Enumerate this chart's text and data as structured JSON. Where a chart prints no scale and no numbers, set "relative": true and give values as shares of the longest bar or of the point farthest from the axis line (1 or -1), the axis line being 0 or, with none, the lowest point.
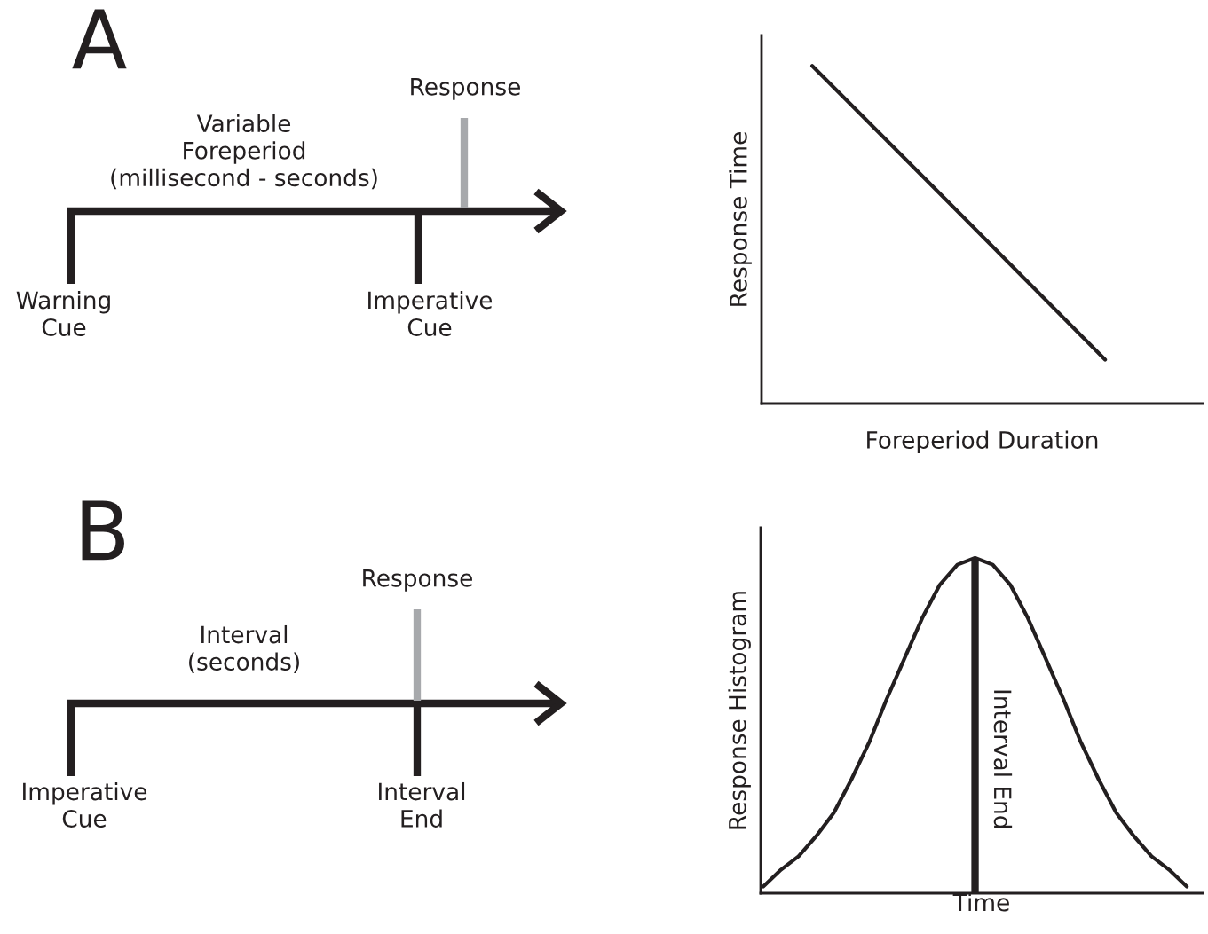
{
  "chart_data": [
    {
      "type": "other",
      "title": "A",
      "annotations": [
        "Response",
        "Variable\nForeperiod\n(millisecond - seconds)",
        "Warning\nCue",
        "Imperative\nCue"
      ]
    },
    {
      "type": "line",
      "relative": true,
      "categories": [
        null,
        null,
        null
      ],
      "xlabel": "Foreperiod Duration",
      "ylabel": "Response Time",
      "tick_labels": false,
      "series": [
        {
          "color": "#231f20",
          "values": [
            1,
            0.566,
            0.13
          ]
        }
      ]
    },
    {
      "type": "other",
      "title": "B",
      "annotations": [
        "Response",
        "Interval\n(seconds)",
        "Imperative\nCue",
        "Interval\nEnd"
      ]
    },
    {
      "type": "line",
      "relative": true,
      "categories": [
        null,
        null,
        null,
        null,
        null,
        null,
        null,
        null,
        null,
        null,
        null,
        null,
        null,
        null,
        null,
        null,
        null,
        null,
        null,
        null,
        null,
        null,
        null,
        null,
        null
      ],
      "xlabel": "Time",
      "ylabel": "Response Histogram",
      "tick_labels": false,
      "annotations": [
        "Interval End"
      ],
      "series": [
        {
          "color": "#231f20",
          "values": [
            0.02,
            0.07,
            0.11,
            0.17,
            0.24,
            0.34,
            0.45,
            0.58,
            0.7,
            0.82,
            0.92,
            0.98,
            1,
            0.98,
            0.92,
            0.82,
            0.7,
            0.58,
            0.45,
            0.34,
            0.24,
            0.17,
            0.11,
            0.07,
            0.02
          ]
        }
      ]
    }
  ]
}
